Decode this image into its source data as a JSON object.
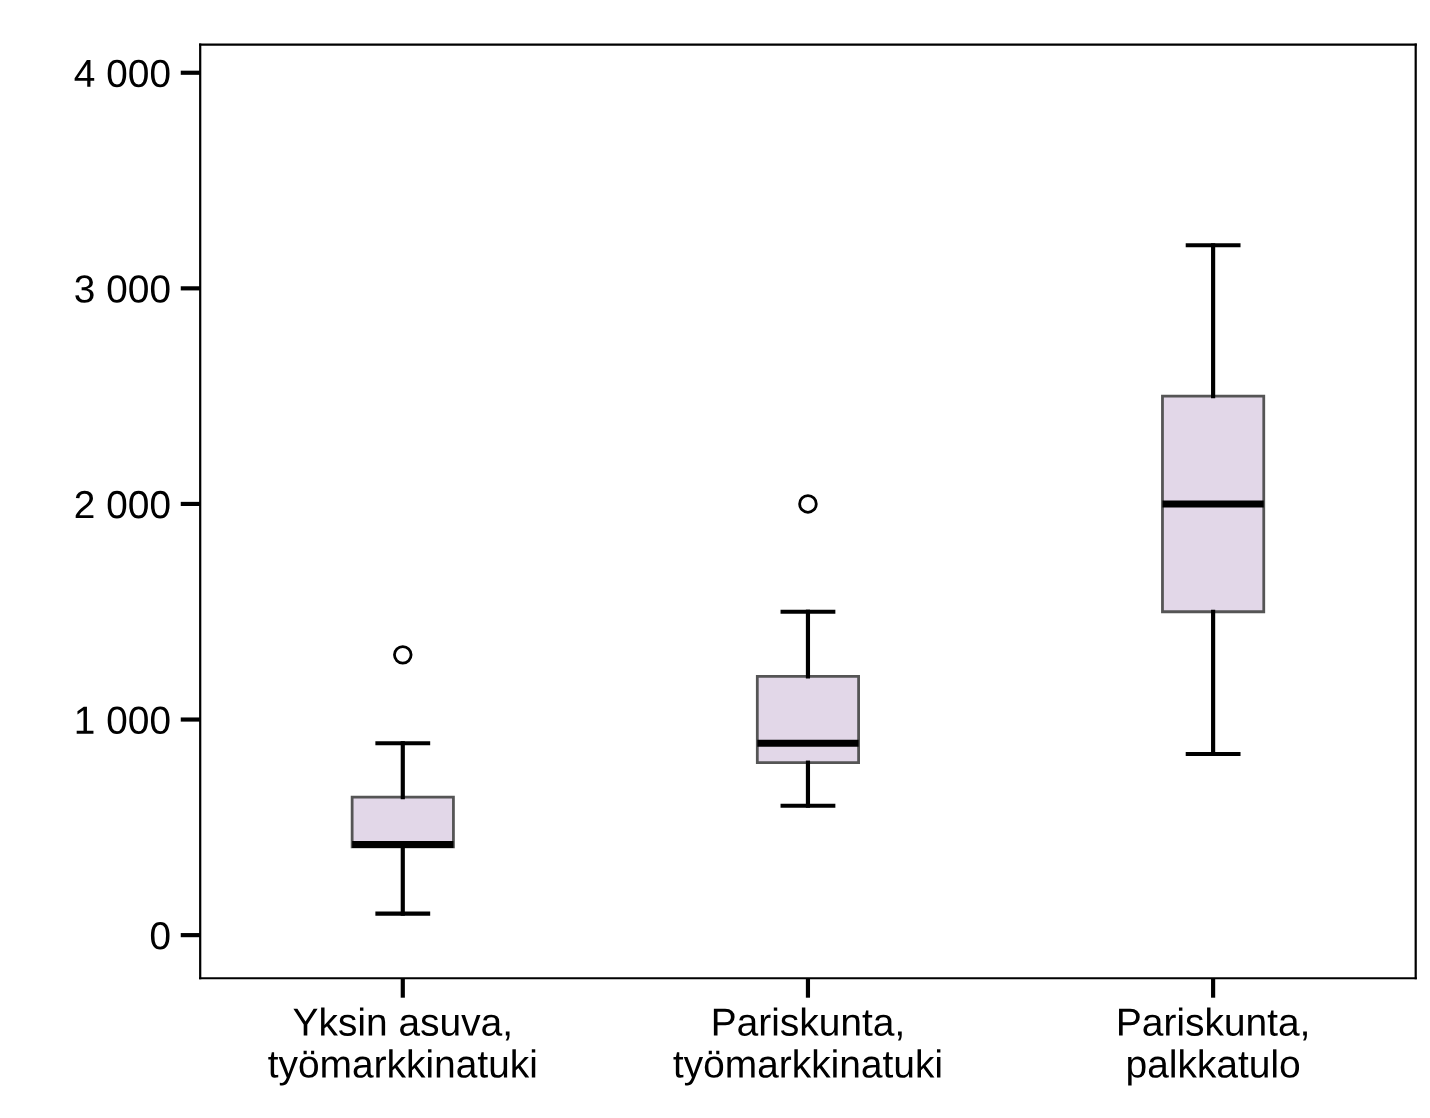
{
  "chart_data": {
    "type": "box",
    "categories": [
      "Yksin asuva,\ntyömarkkinatuki",
      "Pariskunta,\ntyömarkkinatuki",
      "Pariskunta,\npalkkatulo"
    ],
    "boxes": [
      {
        "low": 100,
        "q1": 410,
        "median": 420,
        "q3": 640,
        "high": 890,
        "outliers": [
          1300
        ]
      },
      {
        "low": 600,
        "q1": 800,
        "median": 890,
        "q3": 1200,
        "high": 1500,
        "outliers": [
          2000
        ]
      },
      {
        "low": 840,
        "q1": 1500,
        "median": 2000,
        "q3": 2500,
        "high": 3200
      }
    ],
    "color": "#e2d7e8",
    "ylim": [
      -200,
      4130
    ],
    "yticks": [
      {
        "value": 0,
        "label": "0"
      },
      {
        "value": 1000,
        "label": "1 000"
      },
      {
        "value": 2000,
        "label": "2 000"
      },
      {
        "value": 3000,
        "label": "3 000"
      },
      {
        "value": 4000,
        "label": "4 000"
      }
    ],
    "grid": false
  }
}
